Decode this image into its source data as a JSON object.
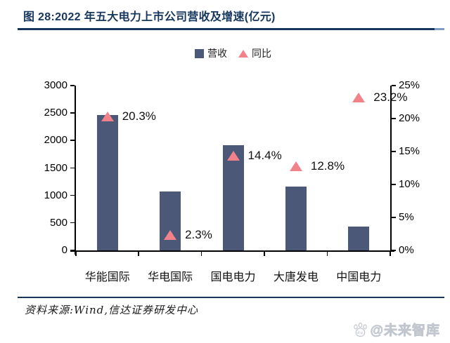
{
  "header": {
    "title": "图 28:2022 年五大电力上市公司营收及增速(亿元)"
  },
  "legend": {
    "items": [
      {
        "label": "营收",
        "marker": "square"
      },
      {
        "label": "同比",
        "marker": "triangle"
      }
    ]
  },
  "chart_data": {
    "type": "bar",
    "title": "2022 年五大电力上市公司营收及增速(亿元)",
    "categories": [
      "华能国际",
      "华电国际",
      "国电电力",
      "大唐发电",
      "中国电力"
    ],
    "series": [
      {
        "name": "营收",
        "type": "bar",
        "axis": "left",
        "values": [
          2470,
          1070,
          1920,
          1160,
          430
        ]
      },
      {
        "name": "同比",
        "type": "scatter",
        "marker": "triangle",
        "axis": "right",
        "values": [
          20.3,
          2.3,
          14.4,
          12.8,
          23.2
        ],
        "point_labels": [
          "20.3%",
          "2.3%",
          "14.4%",
          "12.8%",
          "23.2%"
        ]
      }
    ],
    "left_axis": {
      "min": 0,
      "max": 3000,
      "tick_labels": [
        "3000",
        "2500",
        "2000",
        "1500",
        "1000",
        "500",
        "0"
      ]
    },
    "right_axis": {
      "min": 0,
      "max": 25,
      "tick_labels": [
        "25%",
        "20%",
        "15%",
        "10%",
        "5%",
        "0%"
      ]
    },
    "grid": false,
    "legend_position": "top"
  },
  "footer": {
    "source": "资料来源:Wind,信达证券研发中心",
    "watermark": "@未来智库"
  },
  "colors": {
    "bar": "#4B5878",
    "marker": "#F2828A",
    "navy": "#17365D",
    "axis": "#000000",
    "watermark": "#C9CDD4"
  }
}
